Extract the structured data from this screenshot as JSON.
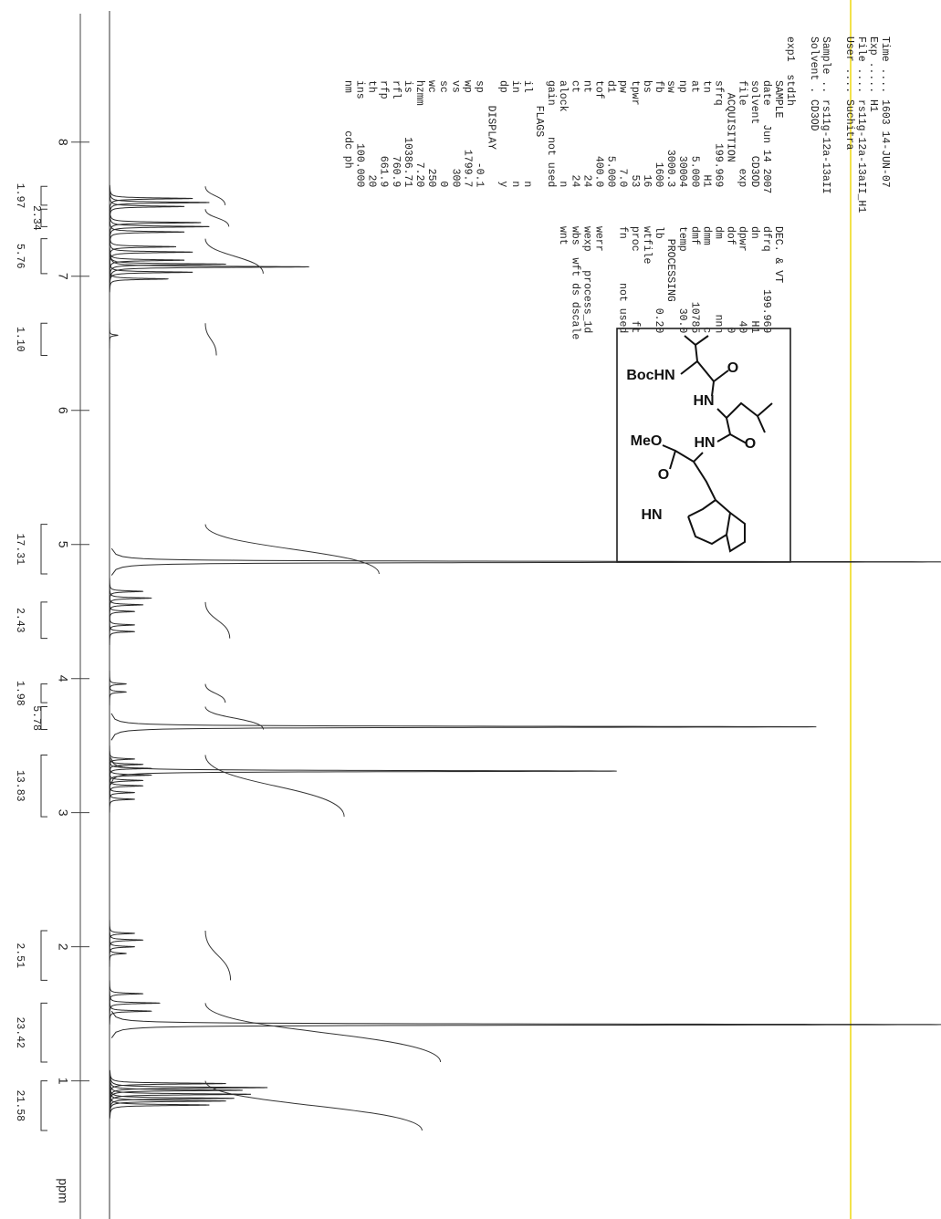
{
  "header": {
    "lines": [
      "Time .... 1603 14-JUN-07",
      "Exp ..... H1",
      "File .... rs11g-12a-13aII_H1",
      "User .... Suchitra"
    ],
    "sample": [
      "Sample .. rs11g-12a-13aII",
      "Solvent . CD3OD"
    ],
    "experiment": "exp1  std1h"
  },
  "parameters": [
    [
      "SAMPLE",
      "DEC. & VT"
    ],
    [
      "date   Jun 14 2007",
      "dfrq      199.969"
    ],
    [
      "solvent     CD3OD",
      "dn             H1"
    ],
    [
      "file          exp",
      "dpwr           40"
    ],
    [
      "  ACQUISITION",
      "dof             0"
    ],
    [
      "sfrq      199.969",
      "dm            nnn"
    ],
    [
      "tn             H1",
      "dmm             c"
    ],
    [
      "at          5.000",
      "dmf         10785"
    ],
    [
      "np          30004",
      "temp         30.0"
    ],
    [
      "sw         3000.3",
      "  PROCESSING"
    ],
    [
      "fb           1600",
      "lb           0.20"
    ],
    [
      "bs             16",
      "wtfile"
    ],
    [
      "tpwr           53",
      "proc           ft"
    ],
    [
      "pw            7.0",
      "fn       not used"
    ],
    [
      "d1          5.000"
    ],
    [
      "tof         400.0",
      "werr"
    ],
    [
      "nt             24",
      "wexp   process_1d"
    ],
    [
      "ct             24",
      "wbs  wft ds dscale"
    ],
    [
      "alock           n",
      "wnt"
    ],
    [
      "gain     not used"
    ],
    [
      "    FLAGS"
    ],
    [
      "il              n"
    ],
    [
      "in              n"
    ],
    [
      "dp              y"
    ],
    [
      "    DISPLAY"
    ],
    [
      "sp           -0.1"
    ],
    [
      "wp         1799.7"
    ],
    [
      "vs            300"
    ],
    [
      "sc              0"
    ],
    [
      "wc            250"
    ],
    [
      "hzmm         7.20"
    ],
    [
      "is       10386.71"
    ],
    [
      "rfl         760.9"
    ],
    [
      "rfp         661.9"
    ],
    [
      "th             20"
    ],
    [
      "ins       100.000"
    ],
    [
      "nm      cdc ph"
    ]
  ],
  "structure": {
    "labels": [
      "BocHN",
      "O",
      "HN",
      "MeO",
      "HN",
      "O",
      "O",
      "HN"
    ]
  },
  "chart_data": {
    "type": "nmr",
    "x_label": "ppm",
    "xlim": [
      9.06,
      -0.03
    ],
    "xticks": [
      8,
      7,
      6,
      5,
      4,
      3,
      2,
      1
    ],
    "ylim": [
      0,
      100
    ],
    "color": "#2a2a2a",
    "x": [
      7.58,
      7.55,
      7.52,
      7.4,
      7.37,
      7.33,
      7.22,
      7.18,
      7.12,
      7.09,
      7.07,
      7.03,
      6.98,
      6.56,
      4.87,
      4.65,
      4.6,
      4.55,
      4.5,
      4.4,
      4.35,
      3.96,
      3.9,
      3.64,
      3.4,
      3.36,
      3.33,
      3.31,
      3.28,
      3.24,
      3.2,
      3.15,
      3.1,
      2.1,
      2.05,
      2.0,
      1.95,
      1.65,
      1.58,
      1.52,
      1.42,
      0.98,
      0.95,
      0.93,
      0.9,
      0.87,
      0.85,
      0.82
    ],
    "values": [
      10,
      12,
      9,
      11,
      12,
      9,
      8,
      10,
      9,
      14,
      24,
      10,
      7,
      1,
      100,
      4,
      5,
      4,
      3,
      3,
      3,
      2,
      2,
      85,
      3,
      4,
      5,
      61,
      5,
      4,
      4,
      3,
      3,
      3,
      4,
      3,
      2,
      4,
      6,
      5,
      100,
      14,
      19,
      16,
      17,
      15,
      14,
      12
    ],
    "integrals": {
      "ranges": [
        [
          7.67,
          7.53
        ],
        [
          7.5,
          7.37
        ],
        [
          7.28,
          7.02
        ],
        [
          6.65,
          6.41
        ],
        [
          5.15,
          4.78
        ],
        [
          4.57,
          4.3
        ],
        [
          3.96,
          3.82
        ],
        [
          3.79,
          3.62
        ],
        [
          3.43,
          2.97
        ],
        [
          2.12,
          1.75
        ],
        [
          1.58,
          1.14
        ],
        [
          1.0,
          0.63
        ]
      ],
      "values": [
        1.97,
        2.34,
        5.76,
        1.1,
        17.31,
        2.43,
        1.98,
        5.78,
        13.83,
        2.51,
        23.42,
        21.58
      ],
      "value_labels": [
        "1.97",
        "2.34",
        "5.76",
        "1.10",
        "17.31",
        "2.43",
        "1.98",
        "5.78",
        "13.83",
        "2.51",
        "23.42",
        "21.58"
      ]
    }
  }
}
